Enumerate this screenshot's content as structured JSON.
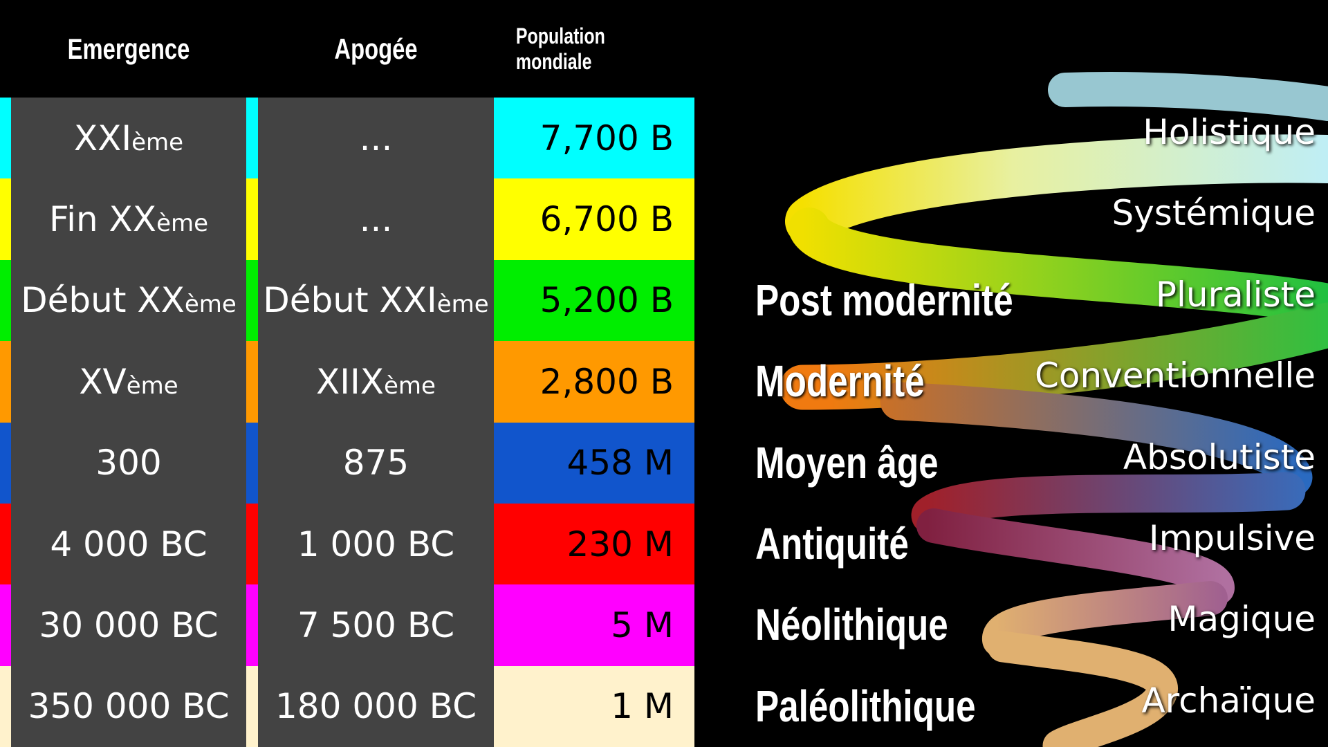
{
  "header": {
    "columns": [
      "Emergence",
      "Apogée",
      "Population mondiale"
    ]
  },
  "table": {
    "rows": [
      {
        "color": "#00ffff",
        "emergence": {
          "text": "XXI",
          "sup": "ème"
        },
        "apogee": {
          "text": "..."
        },
        "population": "7,700 B"
      },
      {
        "color": "#ffff00",
        "emergence": {
          "text": "Fin XX",
          "sup": "ème"
        },
        "apogee": {
          "text": "..."
        },
        "population": "6,700 B"
      },
      {
        "color": "#00ee00",
        "emergence": {
          "text": "Début XX",
          "sup": "ème"
        },
        "apogee": {
          "text": "Début XXI",
          "sup": "ème"
        },
        "population": "5,200 B"
      },
      {
        "color": "#ff9900",
        "emergence": {
          "text": "XV",
          "sup": "ème"
        },
        "apogee": {
          "text": "XIIX",
          "sup": "ème"
        },
        "population": "2,800 B"
      },
      {
        "color": "#1155cc",
        "emergence": {
          "text": "300"
        },
        "apogee": {
          "text": "875"
        },
        "population": "458 M"
      },
      {
        "color": "#ff0000",
        "emergence": {
          "text": "4 000 BC"
        },
        "apogee": {
          "text": "1 000 BC"
        },
        "population": "230 M"
      },
      {
        "color": "#ff00ff",
        "emergence": {
          "text": "30 000 BC"
        },
        "apogee": {
          "text": "7 500 BC"
        },
        "population": "5 M"
      },
      {
        "color": "#fff2cc",
        "emergence": {
          "text": "350 000 BC"
        },
        "apogee": {
          "text": "180 000 BC"
        },
        "population": "1 M"
      }
    ]
  },
  "eras": [
    "Post modernité",
    "Modernité",
    "Moyen âge",
    "Antiquité",
    "Néolithique",
    "Paléolithique"
  ],
  "stages": [
    "Holistique",
    "Systémique",
    "Pluraliste",
    "Conventionnelle",
    "Absolutiste",
    "Impulsive",
    "Magique",
    "Archaïque"
  ]
}
